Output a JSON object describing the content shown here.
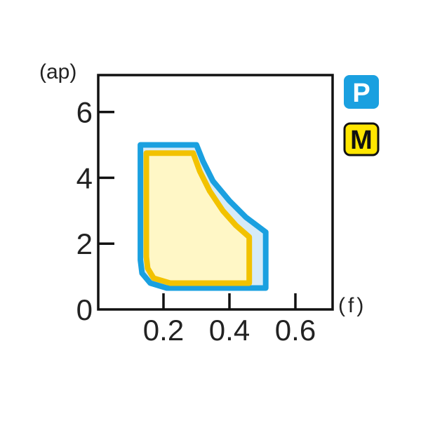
{
  "chart_data": {
    "type": "area",
    "xlabel": "(f)",
    "ylabel": "(ap)",
    "xlim": [
      0,
      0.71
    ],
    "ylim": [
      0,
      7.1
    ],
    "xticks": [
      0.2,
      0.4,
      0.6
    ],
    "xtick_labels": [
      "0.2",
      "0.4",
      "0.6"
    ],
    "yticks": [
      0,
      2,
      4,
      6
    ],
    "ytick_labels": [
      "0",
      "2",
      "4",
      "6"
    ],
    "grid": false,
    "legend_position": "right",
    "series": [
      {
        "name": "P",
        "stroke": "#1aa0e0",
        "fill": "#d6ebf8",
        "points": [
          [
            0.13,
            5.0
          ],
          [
            0.3,
            5.0
          ],
          [
            0.32,
            4.5
          ],
          [
            0.35,
            3.9
          ],
          [
            0.4,
            3.3
          ],
          [
            0.45,
            2.8
          ],
          [
            0.51,
            2.35
          ],
          [
            0.51,
            0.65
          ],
          [
            0.21,
            0.65
          ],
          [
            0.16,
            0.8
          ],
          [
            0.135,
            1.1
          ],
          [
            0.13,
            1.5
          ]
        ]
      },
      {
        "name": "M",
        "stroke": "#f2c200",
        "fill": "#fff7c6",
        "points": [
          [
            0.148,
            4.75
          ],
          [
            0.29,
            4.75
          ],
          [
            0.31,
            4.2
          ],
          [
            0.34,
            3.6
          ],
          [
            0.38,
            3.0
          ],
          [
            0.42,
            2.55
          ],
          [
            0.46,
            2.2
          ],
          [
            0.46,
            0.8
          ],
          [
            0.22,
            0.8
          ],
          [
            0.17,
            0.95
          ],
          [
            0.152,
            1.25
          ],
          [
            0.148,
            1.6
          ]
        ]
      }
    ],
    "legend": [
      {
        "label": "P",
        "bg": "#1aa0e0",
        "text_color": "#ffffff",
        "border": "#1aa0e0"
      },
      {
        "label": "M",
        "bg": "#ffe600",
        "text_color": "#111111",
        "border": "#111111"
      }
    ]
  }
}
